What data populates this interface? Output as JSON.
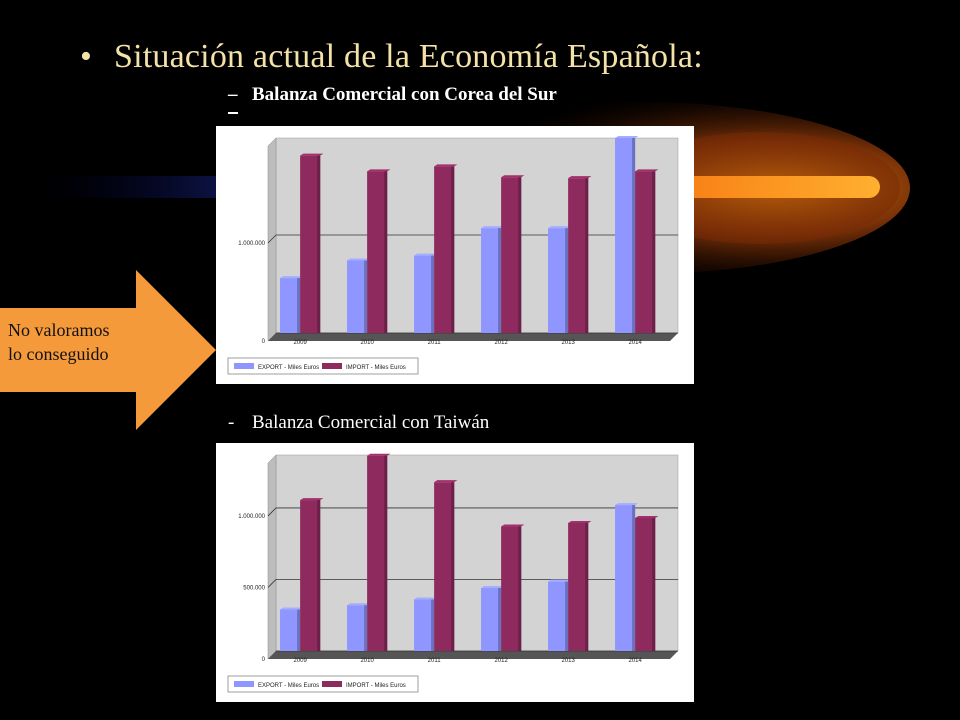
{
  "slide": {
    "title": "Situación actual de la Economía Española:",
    "bullet": "•",
    "dash": "–",
    "sub1": "Balanza Comercial con Corea del Sur",
    "sub2_dash": "-",
    "sub2": "Balanza Comercial con Taiwán",
    "callout": [
      "No valoramos",
      "lo conseguido"
    ],
    "colors": {
      "title": "#f4e3a8",
      "callout": "#f59a3a",
      "export": "#8f96ff",
      "import": "#8e2a5e"
    }
  },
  "chart_data": [
    {
      "type": "bar",
      "title": "",
      "categories": [
        "2009",
        "2010",
        "2011",
        "2012",
        "2013",
        "2014"
      ],
      "series": [
        {
          "name": "EXPORT - Miles Euros",
          "values": [
            560000,
            740000,
            790000,
            1070000,
            1070000,
            1990000
          ]
        },
        {
          "name": "IMPORT - Miles Euros",
          "values": [
            1810000,
            1650000,
            1700000,
            1590000,
            1580000,
            1650000
          ]
        }
      ],
      "yticks": [
        0,
        1000000
      ],
      "ytick_labels": [
        "0",
        "1.000.000"
      ],
      "ylim": [
        0,
        1990000
      ],
      "grid": true,
      "legend": "bottom-left"
    },
    {
      "type": "bar",
      "title": "",
      "categories": [
        "2009",
        "2010",
        "2011",
        "2012",
        "2013",
        "2014"
      ],
      "series": [
        {
          "name": "EXPORT - Miles Euros",
          "values": [
            290000,
            320000,
            360000,
            440000,
            485000,
            1020000
          ]
        },
        {
          "name": "IMPORT - Miles Euros",
          "values": [
            1055000,
            1365000,
            1180000,
            870000,
            895000,
            930000
          ]
        }
      ],
      "yticks": [
        0,
        500000,
        1000000
      ],
      "ytick_labels": [
        "0",
        "500.000",
        "1.000.000"
      ],
      "ylim": [
        0,
        1370000
      ],
      "grid": true,
      "legend": "bottom-left"
    }
  ]
}
